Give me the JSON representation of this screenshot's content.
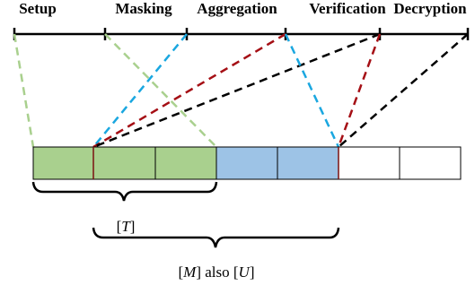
{
  "phases": [
    {
      "label": "Setup"
    },
    {
      "label": "Masking"
    },
    {
      "label": "Aggregation"
    },
    {
      "label": "Verification"
    },
    {
      "label": "Decryption"
    }
  ],
  "blocks": [
    {
      "color": "#a9d08e"
    },
    {
      "color": "#a9d08e"
    },
    {
      "color": "#a9d08e"
    },
    {
      "color": "#9dc3e6"
    },
    {
      "color": "#9dc3e6"
    },
    {
      "color": "#ffffff"
    },
    {
      "color": "#ffffff"
    }
  ],
  "connector_colors": {
    "green": "#a9d08e",
    "blue": "#1aa7e0",
    "red": "#a50f15",
    "black": "#000000"
  },
  "braces": {
    "t_label": {
      "open": "[",
      "var": "T",
      "close": "]"
    },
    "mu_label": {
      "open": "[",
      "var": "M",
      "mid": "] also [",
      "var2": "U",
      "close": "]"
    }
  }
}
